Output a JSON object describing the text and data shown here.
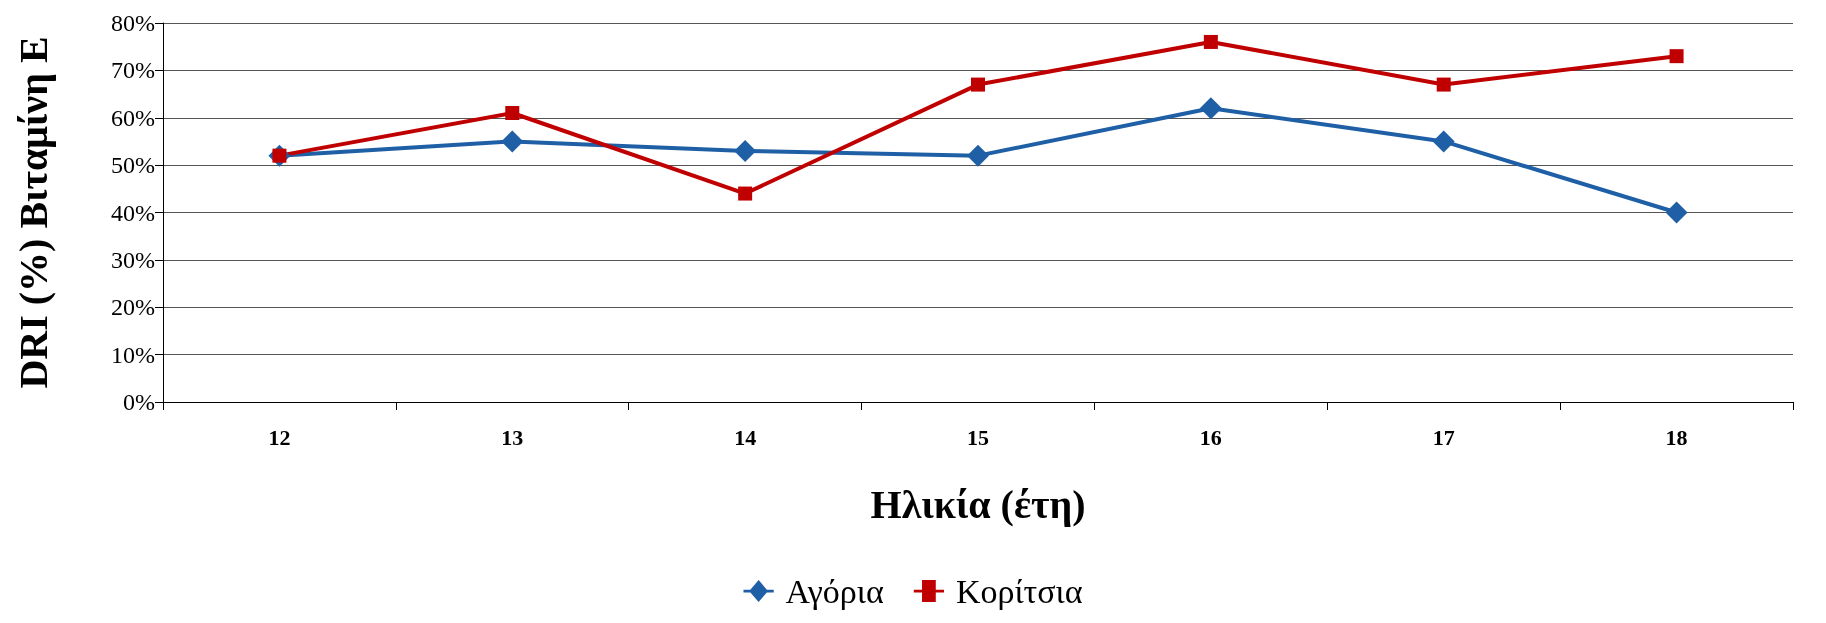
{
  "chart_data": {
    "type": "line",
    "xlabel": "Ηλικία (έτη)",
    "ylabel": "DRI (%) Βιταμίνη Ε",
    "categories": [
      "12",
      "13",
      "14",
      "15",
      "16",
      "17",
      "18"
    ],
    "series": [
      {
        "name": "Αγόρια",
        "color": "#1f5fa6",
        "marker": "diamond",
        "values": [
          52,
          55,
          53,
          52,
          62,
          55,
          40
        ]
      },
      {
        "name": "Κορίτσια",
        "color": "#c00000",
        "marker": "square",
        "values": [
          52,
          61,
          44,
          67,
          76,
          67,
          73
        ]
      }
    ],
    "ylim": [
      0,
      80
    ],
    "yticks": [
      {
        "value": 0,
        "label": "0%"
      },
      {
        "value": 10,
        "label": "10%"
      },
      {
        "value": 20,
        "label": "20%"
      },
      {
        "value": 30,
        "label": "30%"
      },
      {
        "value": 40,
        "label": "40%"
      },
      {
        "value": 50,
        "label": "50%"
      },
      {
        "value": 60,
        "label": "60%"
      },
      {
        "value": 70,
        "label": "70%"
      },
      {
        "value": 80,
        "label": "80%"
      }
    ],
    "grid": "y",
    "legend": "bottom",
    "line_style": "solid"
  }
}
